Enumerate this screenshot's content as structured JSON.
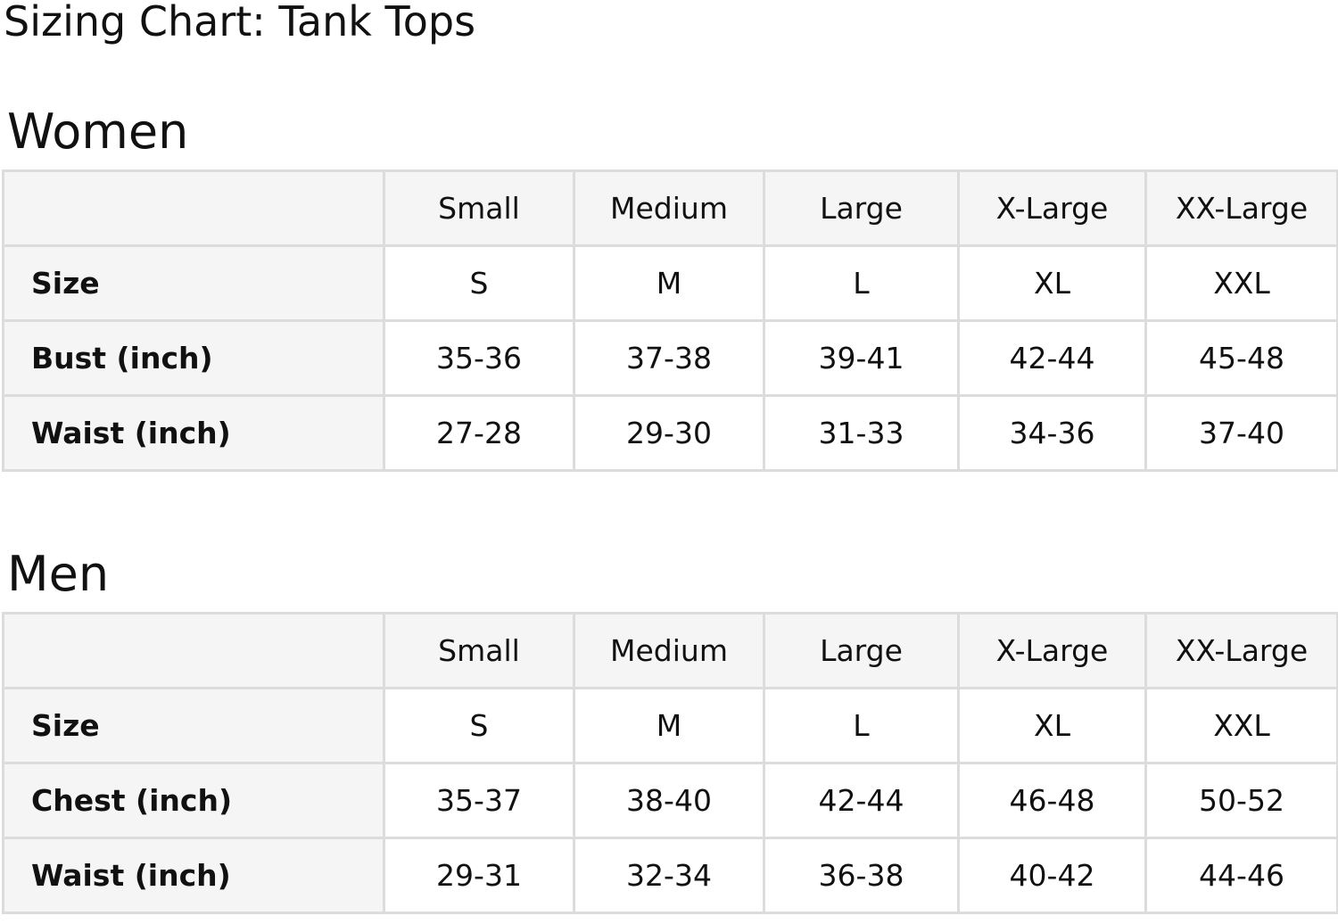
{
  "title": "Sizing Chart: Tank Tops",
  "columns": [
    "Small",
    "Medium",
    "Large",
    "X-Large",
    "XX-Large"
  ],
  "sections": [
    {
      "heading": "Women",
      "rows": [
        {
          "label": "Size",
          "values": [
            "S",
            "M",
            "L",
            "XL",
            "XXL"
          ]
        },
        {
          "label": "Bust (inch)",
          "values": [
            "35-36",
            "37-38",
            "39-41",
            "42-44",
            "45-48"
          ]
        },
        {
          "label": "Waist (inch)",
          "values": [
            "27-28",
            "29-30",
            "31-33",
            "34-36",
            "37-40"
          ]
        }
      ]
    },
    {
      "heading": "Men",
      "rows": [
        {
          "label": "Size",
          "values": [
            "S",
            "M",
            "L",
            "XL",
            "XXL"
          ]
        },
        {
          "label": "Chest (inch)",
          "values": [
            "35-37",
            "38-40",
            "42-44",
            "46-48",
            "50-52"
          ]
        },
        {
          "label": "Waist (inch)",
          "values": [
            "29-31",
            "32-34",
            "36-38",
            "40-42",
            "44-46"
          ]
        }
      ]
    }
  ]
}
